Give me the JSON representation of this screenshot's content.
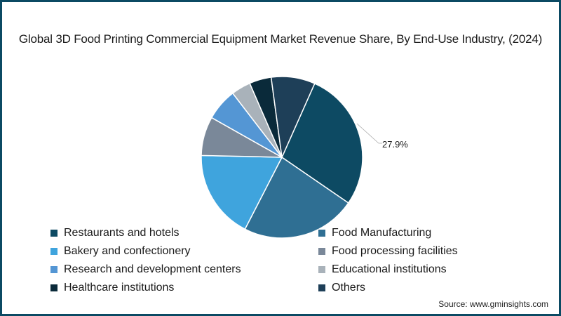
{
  "title": "Global 3D Food Printing Commercial Equipment Market Revenue Share, By End-Use Industry, (2024)",
  "source": "Source: www.gminsights.com",
  "data_label": "27.9%",
  "chart_data": {
    "type": "pie",
    "title": "Global 3D Food Printing Commercial Equipment Market Revenue Share, By End-Use Industry, (2024)",
    "categories": [
      "Restaurants and hotels",
      "Food Manufacturing",
      "Bakery and confectionery",
      "Food processing facilities",
      "Research and development centers",
      "Educational institutions",
      "Healthcare institutions",
      "Others"
    ],
    "values": [
      27.9,
      23.0,
      17.8,
      7.8,
      6.4,
      3.9,
      4.4,
      8.8
    ],
    "colors": [
      "#0d4a63",
      "#2f6f93",
      "#3fa4dd",
      "#7a8899",
      "#5496d4",
      "#a9b2ba",
      "#0a2a3a",
      "#1e3f58"
    ],
    "annotations": [
      {
        "category": "Restaurants and hotels",
        "text": "27.9%"
      }
    ],
    "legend_position": "bottom",
    "start_angle_deg": 24
  },
  "legend": [
    {
      "label": "Restaurants and hotels",
      "color": "#0d4a63"
    },
    {
      "label": "Food Manufacturing",
      "color": "#2f6f93"
    },
    {
      "label": "Bakery and confectionery",
      "color": "#3fa4dd"
    },
    {
      "label": "Food processing facilities",
      "color": "#7a8899"
    },
    {
      "label": "Research and development centers",
      "color": "#5496d4"
    },
    {
      "label": "Educational institutions",
      "color": "#a9b2ba"
    },
    {
      "label": "Healthcare institutions",
      "color": "#0a2a3a"
    },
    {
      "label": "Others",
      "color": "#1e3f58"
    }
  ]
}
